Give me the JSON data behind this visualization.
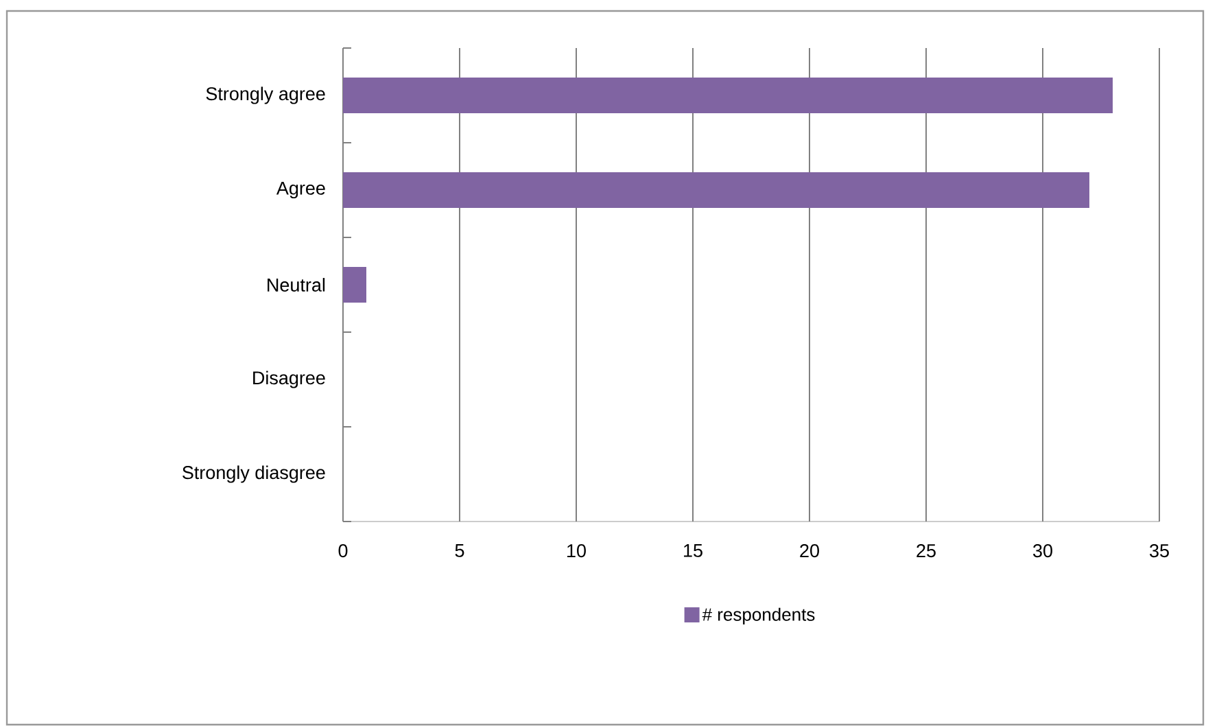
{
  "chart_data": {
    "type": "bar",
    "orientation": "horizontal",
    "categories": [
      "Strongly agree",
      "Agree",
      "Neutral",
      "Disagree",
      "Strongly diasgree"
    ],
    "series": [
      {
        "name": "# respondents",
        "color": "#8064a2",
        "values": [
          33,
          32,
          1,
          0,
          0
        ]
      }
    ],
    "xlim": [
      0,
      35
    ],
    "xticks": [
      0,
      5,
      10,
      15,
      20,
      25,
      30,
      35
    ],
    "grid": "x",
    "legend": "bottom"
  }
}
